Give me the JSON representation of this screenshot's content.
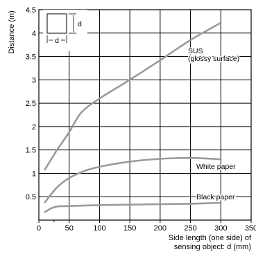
{
  "chart_data": {
    "type": "line",
    "xlabel": [
      "Side length (one side) of",
      "sensing object: d (mm)"
    ],
    "ylabel": "Distance (m)",
    "xlim": [
      0,
      350
    ],
    "ylim": [
      0,
      4.5
    ],
    "x_ticks": [
      0,
      50,
      100,
      150,
      200,
      250,
      300,
      350
    ],
    "y_ticks": [
      0.5,
      1,
      1.5,
      2,
      2.5,
      3,
      3.5,
      4,
      4.5
    ],
    "x_tick_labels": [
      "0",
      "50",
      "100",
      "150",
      "200",
      "250",
      "300",
      "350"
    ],
    "y_tick_labels": [
      "0.5",
      "1",
      "1.5",
      "2",
      "2.5",
      "3",
      "3.5",
      "4",
      "4.5"
    ],
    "grid": true,
    "series": [
      {
        "name": "SUS (glossy surface)",
        "label_lines": [
          "SUS",
          "(glossy surface)"
        ],
        "color": "#9a9a9a",
        "x": [
          10,
          30,
          50,
          70,
          100,
          150,
          200,
          250,
          300
        ],
        "y": [
          1.08,
          1.5,
          1.88,
          2.3,
          2.6,
          3.0,
          3.42,
          3.85,
          4.22
        ]
      },
      {
        "name": "White paper",
        "label_lines": [
          "White paper"
        ],
        "color": "#9a9a9a",
        "x": [
          10,
          30,
          50,
          75,
          100,
          150,
          200,
          250,
          300
        ],
        "y": [
          0.38,
          0.7,
          0.9,
          1.05,
          1.14,
          1.25,
          1.31,
          1.33,
          1.3
        ]
      },
      {
        "name": "Black paper",
        "label_lines": [
          "Black paper"
        ],
        "color": "#9a9a9a",
        "x": [
          10,
          20,
          30,
          50,
          100,
          150,
          200,
          250,
          300
        ],
        "y": [
          0.17,
          0.25,
          0.29,
          0.3,
          0.32,
          0.33,
          0.34,
          0.35,
          0.37
        ]
      }
    ],
    "inset": {
      "dim_label": "d"
    }
  }
}
